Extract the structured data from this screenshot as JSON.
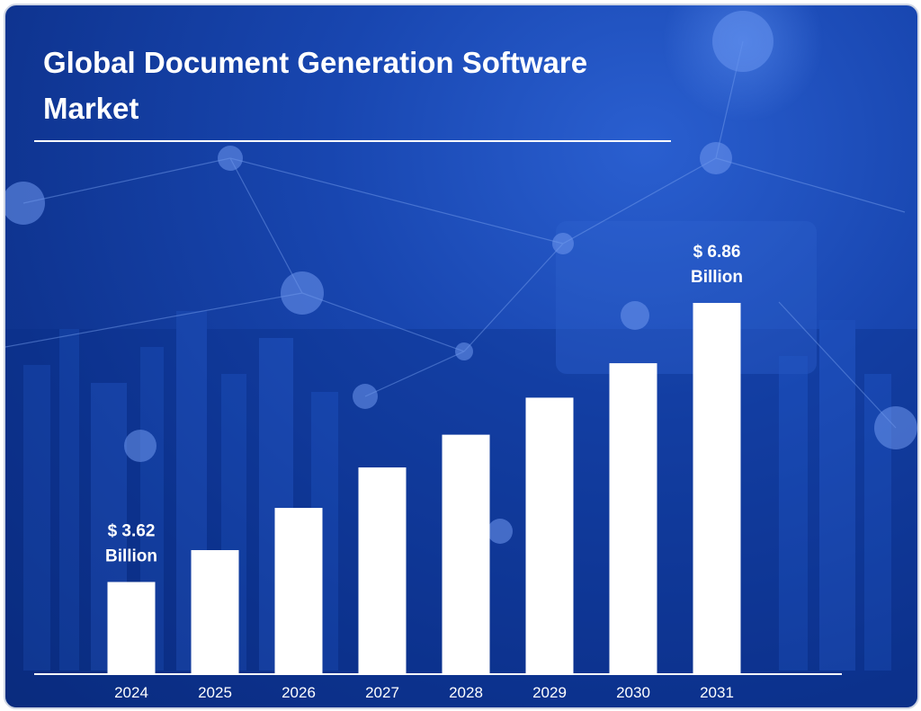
{
  "chart_data": {
    "type": "bar",
    "title": "Global Document Generation Software Market",
    "title_lines": [
      "Global Document Generation Software",
      "Market"
    ],
    "categories": [
      "2024",
      "2025",
      "2026",
      "2027",
      "2028",
      "2029",
      "2030",
      "2031"
    ],
    "values": [
      3.62,
      3.99,
      4.48,
      4.95,
      5.33,
      5.76,
      6.16,
      6.86
    ],
    "annotations": [
      {
        "category": "2024",
        "line1": "$ 3.62",
        "line2": "Billion"
      },
      {
        "category": "2031",
        "line1": "$ 6.86",
        "line2": "Billion"
      }
    ],
    "xlabel": "",
    "ylabel": "",
    "ylim": [
      2.55,
      6.86
    ],
    "grid": false,
    "legend": "none",
    "colors": {
      "bar": "#ffffff",
      "background": "#1846b0",
      "text": "#ffffff",
      "rule": "#ffffff"
    }
  }
}
